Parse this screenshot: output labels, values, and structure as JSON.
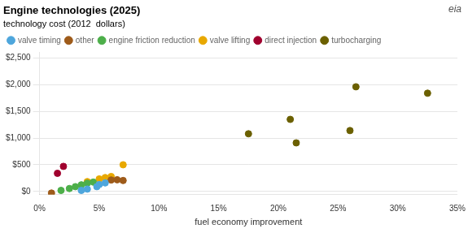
{
  "chart_data": {
    "type": "scatter",
    "title": "Engine technologies (2025)",
    "subtitle": "technology cost (2012  dollars)",
    "x_label": "fuel economy improvement",
    "annotations": [
      {
        "text": "eia"
      }
    ],
    "xlim": [
      0,
      0.35
    ],
    "ylim": [
      -60,
      2600
    ],
    "xticks": [
      {
        "value": 0,
        "label": "0%"
      },
      {
        "value": 0.05,
        "label": "5%"
      },
      {
        "value": 0.1,
        "label": "10%"
      },
      {
        "value": 0.15,
        "label": "15%"
      },
      {
        "value": 0.2,
        "label": "20%"
      },
      {
        "value": 0.25,
        "label": "25%"
      },
      {
        "value": 0.3,
        "label": "30%"
      },
      {
        "value": 0.35,
        "label": "35%"
      }
    ],
    "yticks": [
      {
        "value": 0,
        "label": "$0"
      },
      {
        "value": 500,
        "label": "$500"
      },
      {
        "value": 1000,
        "label": "$1,000"
      },
      {
        "value": 1500,
        "label": "$1,500"
      },
      {
        "value": 2000,
        "label": "$2,000"
      },
      {
        "value": 2500,
        "label": "$2,500"
      }
    ],
    "grid": "y",
    "legend": "upper left",
    "series": [
      {
        "name": "valve timing",
        "color": "#4EA6DC",
        "x": [
          0.035,
          0.04,
          0.048,
          0.05,
          0.055
        ],
        "values": [
          20,
          45,
          90,
          130,
          160
        ]
      },
      {
        "name": "other",
        "color": "#9E5B1A",
        "x": [
          0.01,
          0.06,
          0.065,
          0.07
        ],
        "values": [
          -30,
          215,
          220,
          205
        ]
      },
      {
        "name": "engine friction reduction",
        "color": "#4DAF4A",
        "x": [
          0.018,
          0.025,
          0.03,
          0.035,
          0.04,
          0.045
        ],
        "values": [
          20,
          55,
          90,
          125,
          155,
          175
        ]
      },
      {
        "name": "valve lifting",
        "color": "#E8A800",
        "x": [
          0.04,
          0.05,
          0.055,
          0.06,
          0.07
        ],
        "values": [
          185,
          235,
          260,
          280,
          500
        ]
      },
      {
        "name": "direct injection",
        "color": "#A0002E",
        "x": [
          0.015,
          0.02
        ],
        "values": [
          340,
          470
        ]
      },
      {
        "name": "turbocharging",
        "color": "#6B6000",
        "x": [
          0.175,
          0.21,
          0.215,
          0.26,
          0.265,
          0.325
        ],
        "values": [
          1080,
          1350,
          910,
          1140,
          1960,
          1840
        ]
      }
    ]
  }
}
